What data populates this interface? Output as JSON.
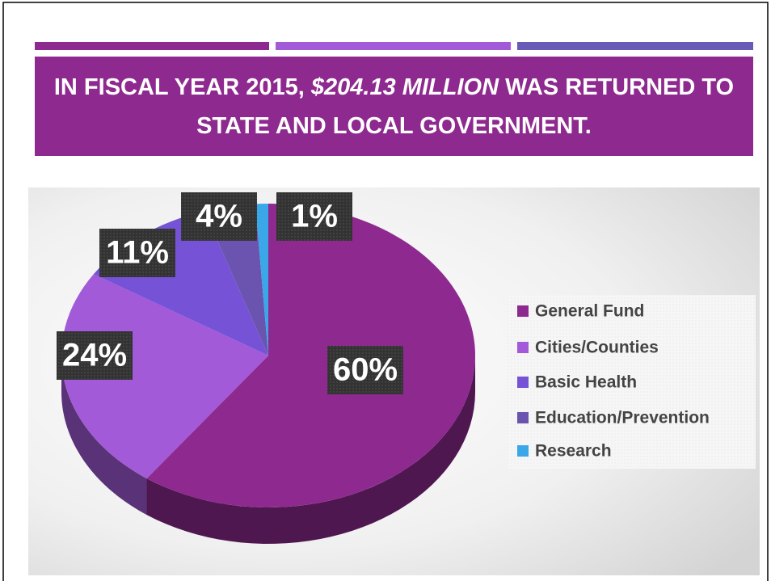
{
  "slide": {
    "title_parts": [
      "IN FISCAL YEAR 2015,",
      "$204.13 MILLION",
      "WAS RETURNED TO STATE AND LOCAL GOVERNMENT."
    ]
  },
  "chart_data": {
    "type": "pie",
    "categories": [
      "General Fund",
      "Cities/Counties",
      "Basic Health",
      "Education/Prevention",
      "Research"
    ],
    "values": [
      60,
      24,
      11,
      4,
      1
    ],
    "value_labels": [
      "60%",
      "24%",
      "11%",
      "4%",
      "1%"
    ],
    "colors": [
      "#8e2a8f",
      "#a25ad8",
      "#7652d6",
      "#6a54b0",
      "#3aa8e8"
    ],
    "legend": "right"
  }
}
